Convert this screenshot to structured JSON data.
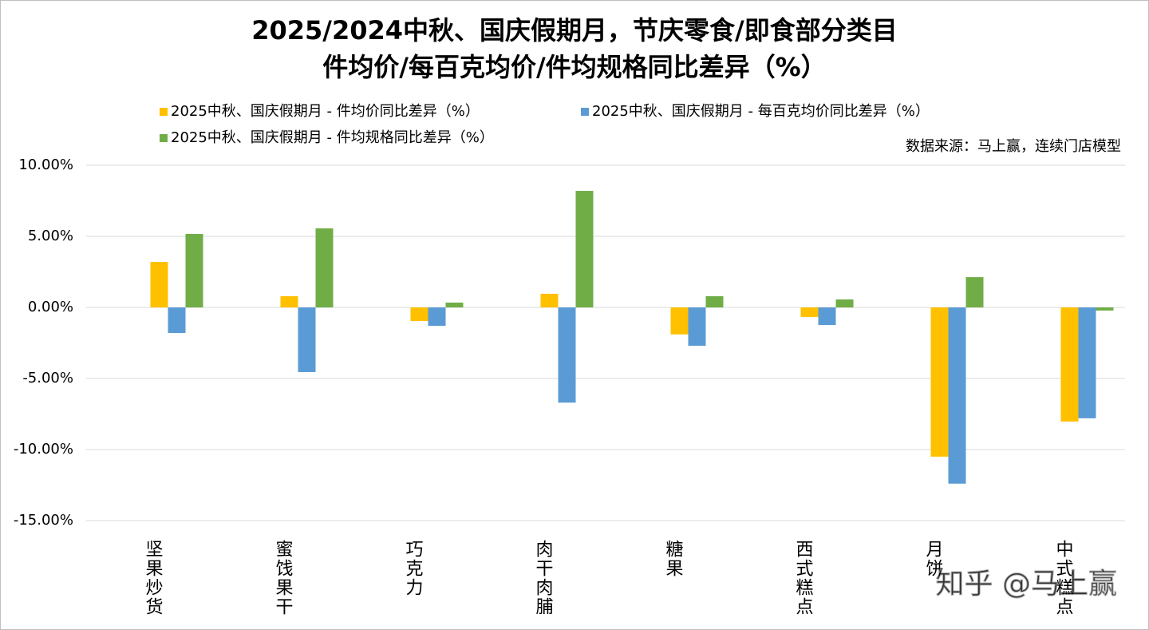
{
  "chart_data": {
    "type": "bar",
    "title": "2025/2024中秋、国庆假期月，节庆零食/即食部分类目",
    "subtitle": "件均价/每百克均价/件均规格同比差异（%）",
    "source": "数据来源：马上赢，连续门店模型",
    "watermark": "知乎 @马上赢",
    "categories": [
      "坚果炒货",
      "蜜饯果干",
      "巧克力",
      "肉干肉脯",
      "糖果",
      "西式糕点",
      "月饼",
      "中式糕点"
    ],
    "series": [
      {
        "name": "2025中秋、国庆假期月 - 件均价同比差异（%）",
        "color": "#ffc000",
        "values": [
          3.2,
          0.79,
          -0.96,
          0.96,
          -1.9,
          -0.67,
          -10.5,
          -8.03
        ]
      },
      {
        "name": "2025中秋、国庆假期月 - 每百克均价同比差异（%）",
        "color": "#5b9bd5",
        "values": [
          -1.8,
          -4.55,
          -1.3,
          -6.7,
          -2.7,
          -1.24,
          -12.4,
          -7.8
        ]
      },
      {
        "name": "2025中秋、国庆假期月 - 件均规格同比差异（%）",
        "color": "#70ad47",
        "values": [
          5.17,
          5.56,
          0.34,
          8.2,
          0.79,
          0.56,
          2.13,
          -0.22
        ]
      }
    ],
    "ylim": [
      -15,
      10
    ],
    "yticks": [
      {
        "value": -15,
        "label": "-15.00%"
      },
      {
        "value": -10,
        "label": "-10.00%"
      },
      {
        "value": -5,
        "label": "-5.00%"
      },
      {
        "value": 0,
        "label": "0.00%"
      },
      {
        "value": 5,
        "label": "5.00%"
      },
      {
        "value": 10,
        "label": "10.00%"
      }
    ],
    "grid": true
  }
}
